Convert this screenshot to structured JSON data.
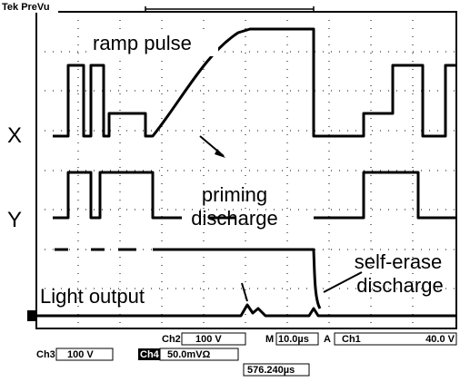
{
  "header": {
    "brand": "Tek PreVu"
  },
  "annotations": {
    "ramp": "ramp pulse",
    "priming_1": "priming",
    "priming_2": "discharge",
    "self_erase_1": "self-erase",
    "self_erase_2": "discharge",
    "light": "Light output"
  },
  "trace_labels": {
    "x": "X",
    "y": "Y"
  },
  "readouts": {
    "ch2": "Ch2",
    "ch2_scale": "100 V",
    "m": "M",
    "timebase": "10.0µs",
    "a": "A",
    "ch1": "Ch1",
    "trigger_level": "40.0 V",
    "ch3": "Ch3",
    "ch3_scale": "100 V",
    "ch4": "Ch4",
    "ch4_scale": "50.0mVΩ",
    "position": "576.240µs"
  }
}
